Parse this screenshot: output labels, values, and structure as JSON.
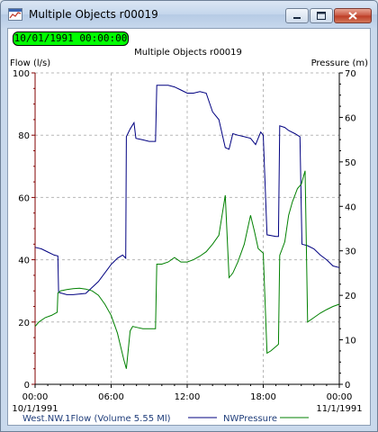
{
  "window": {
    "title": "Multiple Objects r00019",
    "icon": "chart-window-icon",
    "buttons": [
      "minimize-icon",
      "maximize-icon",
      "close-icon"
    ]
  },
  "time_indicator": {
    "value": "10/01/1991 00:00:00",
    "color": "#00ff00"
  },
  "chart_data": {
    "type": "line",
    "title": "Multiple Objects r00019",
    "xlabel": "",
    "ylabel_left": "Flow (l/s)",
    "ylabel_right": "Pressure (m)",
    "x_range_hours": [
      0,
      24
    ],
    "x_ticks": [
      {
        "label": "00:00",
        "date": "10/1/1991"
      },
      {
        "label": "06:00",
        "date": ""
      },
      {
        "label": "12:00",
        "date": ""
      },
      {
        "label": "18:00",
        "date": ""
      },
      {
        "label": "00:00",
        "date": "11/1/1991"
      }
    ],
    "ylim_left": [
      0,
      100
    ],
    "ylim_right": [
      0,
      70
    ],
    "yticks_left": [
      0,
      20,
      40,
      60,
      80,
      100
    ],
    "yticks_right": [
      0,
      10,
      20,
      30,
      40,
      50,
      60,
      70
    ],
    "grid": true,
    "series": [
      {
        "name": "West.NW.1Flow (Volume 5.55 Ml)",
        "axis": "left",
        "color": "#000080",
        "points": [
          [
            0,
            44
          ],
          [
            0.5,
            43.5
          ],
          [
            1,
            42.5
          ],
          [
            1.5,
            41.5
          ],
          [
            1.8,
            41.2
          ],
          [
            1.85,
            29.5
          ],
          [
            2.5,
            28.8
          ],
          [
            3,
            28.8
          ],
          [
            4,
            29.2
          ],
          [
            5,
            33
          ],
          [
            6,
            38.5
          ],
          [
            6.5,
            40.5
          ],
          [
            6.9,
            41.5
          ],
          [
            7.15,
            40.5
          ],
          [
            7.2,
            79.5
          ],
          [
            7.5,
            82
          ],
          [
            7.8,
            84
          ],
          [
            7.95,
            79
          ],
          [
            8.5,
            78.5
          ],
          [
            9,
            78
          ],
          [
            9.5,
            78
          ],
          [
            9.6,
            96
          ],
          [
            10,
            96
          ],
          [
            10.5,
            96
          ],
          [
            11,
            95.5
          ],
          [
            11.5,
            94.5
          ],
          [
            12,
            93.5
          ],
          [
            12.5,
            93.5
          ],
          [
            13,
            94
          ],
          [
            13.5,
            93.5
          ],
          [
            14,
            87.5
          ],
          [
            14.5,
            85
          ],
          [
            15,
            76
          ],
          [
            15.3,
            75.5
          ],
          [
            15.6,
            80.5
          ],
          [
            16,
            80
          ],
          [
            16.5,
            79.5
          ],
          [
            17,
            79
          ],
          [
            17.4,
            77
          ],
          [
            17.8,
            81
          ],
          [
            18,
            80
          ],
          [
            18.3,
            48
          ],
          [
            19,
            47.5
          ],
          [
            19.2,
            47.5
          ],
          [
            19.3,
            83
          ],
          [
            19.7,
            82.5
          ],
          [
            20,
            81.5
          ],
          [
            20.5,
            80.5
          ],
          [
            20.9,
            79.5
          ],
          [
            21.05,
            45
          ],
          [
            21.5,
            44.5
          ],
          [
            22,
            43.5
          ],
          [
            22.5,
            41.5
          ],
          [
            23,
            40
          ],
          [
            23.5,
            38
          ],
          [
            24,
            37.5
          ]
        ]
      },
      {
        "name": "NWPressure",
        "axis": "right",
        "color": "#008000",
        "points": [
          [
            0,
            13
          ],
          [
            0.3,
            14
          ],
          [
            0.8,
            15
          ],
          [
            1.3,
            15.5
          ],
          [
            1.75,
            16.2
          ],
          [
            1.8,
            20.5
          ],
          [
            2,
            21
          ],
          [
            2.5,
            21.3
          ],
          [
            3,
            21.5
          ],
          [
            3.5,
            21.6
          ],
          [
            4,
            21.4
          ],
          [
            4.5,
            21
          ],
          [
            5,
            20
          ],
          [
            5.5,
            18
          ],
          [
            6,
            15.5
          ],
          [
            6.5,
            11.5
          ],
          [
            7,
            5.5
          ],
          [
            7.2,
            3.5
          ],
          [
            7.5,
            12
          ],
          [
            7.7,
            13
          ],
          [
            8,
            12.8
          ],
          [
            8.5,
            12.5
          ],
          [
            9,
            12.5
          ],
          [
            9.5,
            12.5
          ],
          [
            9.6,
            27
          ],
          [
            10,
            27
          ],
          [
            10.5,
            27.5
          ],
          [
            11,
            28.5
          ],
          [
            11.5,
            27.5
          ],
          [
            12,
            27.5
          ],
          [
            12.5,
            28
          ],
          [
            13,
            28.8
          ],
          [
            13.5,
            29.8
          ],
          [
            14,
            31.5
          ],
          [
            14.5,
            33.5
          ],
          [
            15,
            42.5
          ],
          [
            15.3,
            24
          ],
          [
            15.6,
            25
          ],
          [
            16,
            27.5
          ],
          [
            16.5,
            31.5
          ],
          [
            17,
            38
          ],
          [
            17.3,
            34.5
          ],
          [
            17.6,
            30.5
          ],
          [
            18,
            29.5
          ],
          [
            18.3,
            7
          ],
          [
            18.6,
            7.5
          ],
          [
            19,
            8.5
          ],
          [
            19.2,
            9
          ],
          [
            19.3,
            29
          ],
          [
            19.7,
            32
          ],
          [
            20,
            38
          ],
          [
            20.3,
            41
          ],
          [
            20.7,
            44
          ],
          [
            21,
            45
          ],
          [
            21.3,
            48
          ],
          [
            21.5,
            14
          ],
          [
            22,
            15
          ],
          [
            22.5,
            16
          ],
          [
            23,
            16.8
          ],
          [
            23.5,
            17.5
          ],
          [
            24,
            18
          ]
        ]
      }
    ]
  }
}
